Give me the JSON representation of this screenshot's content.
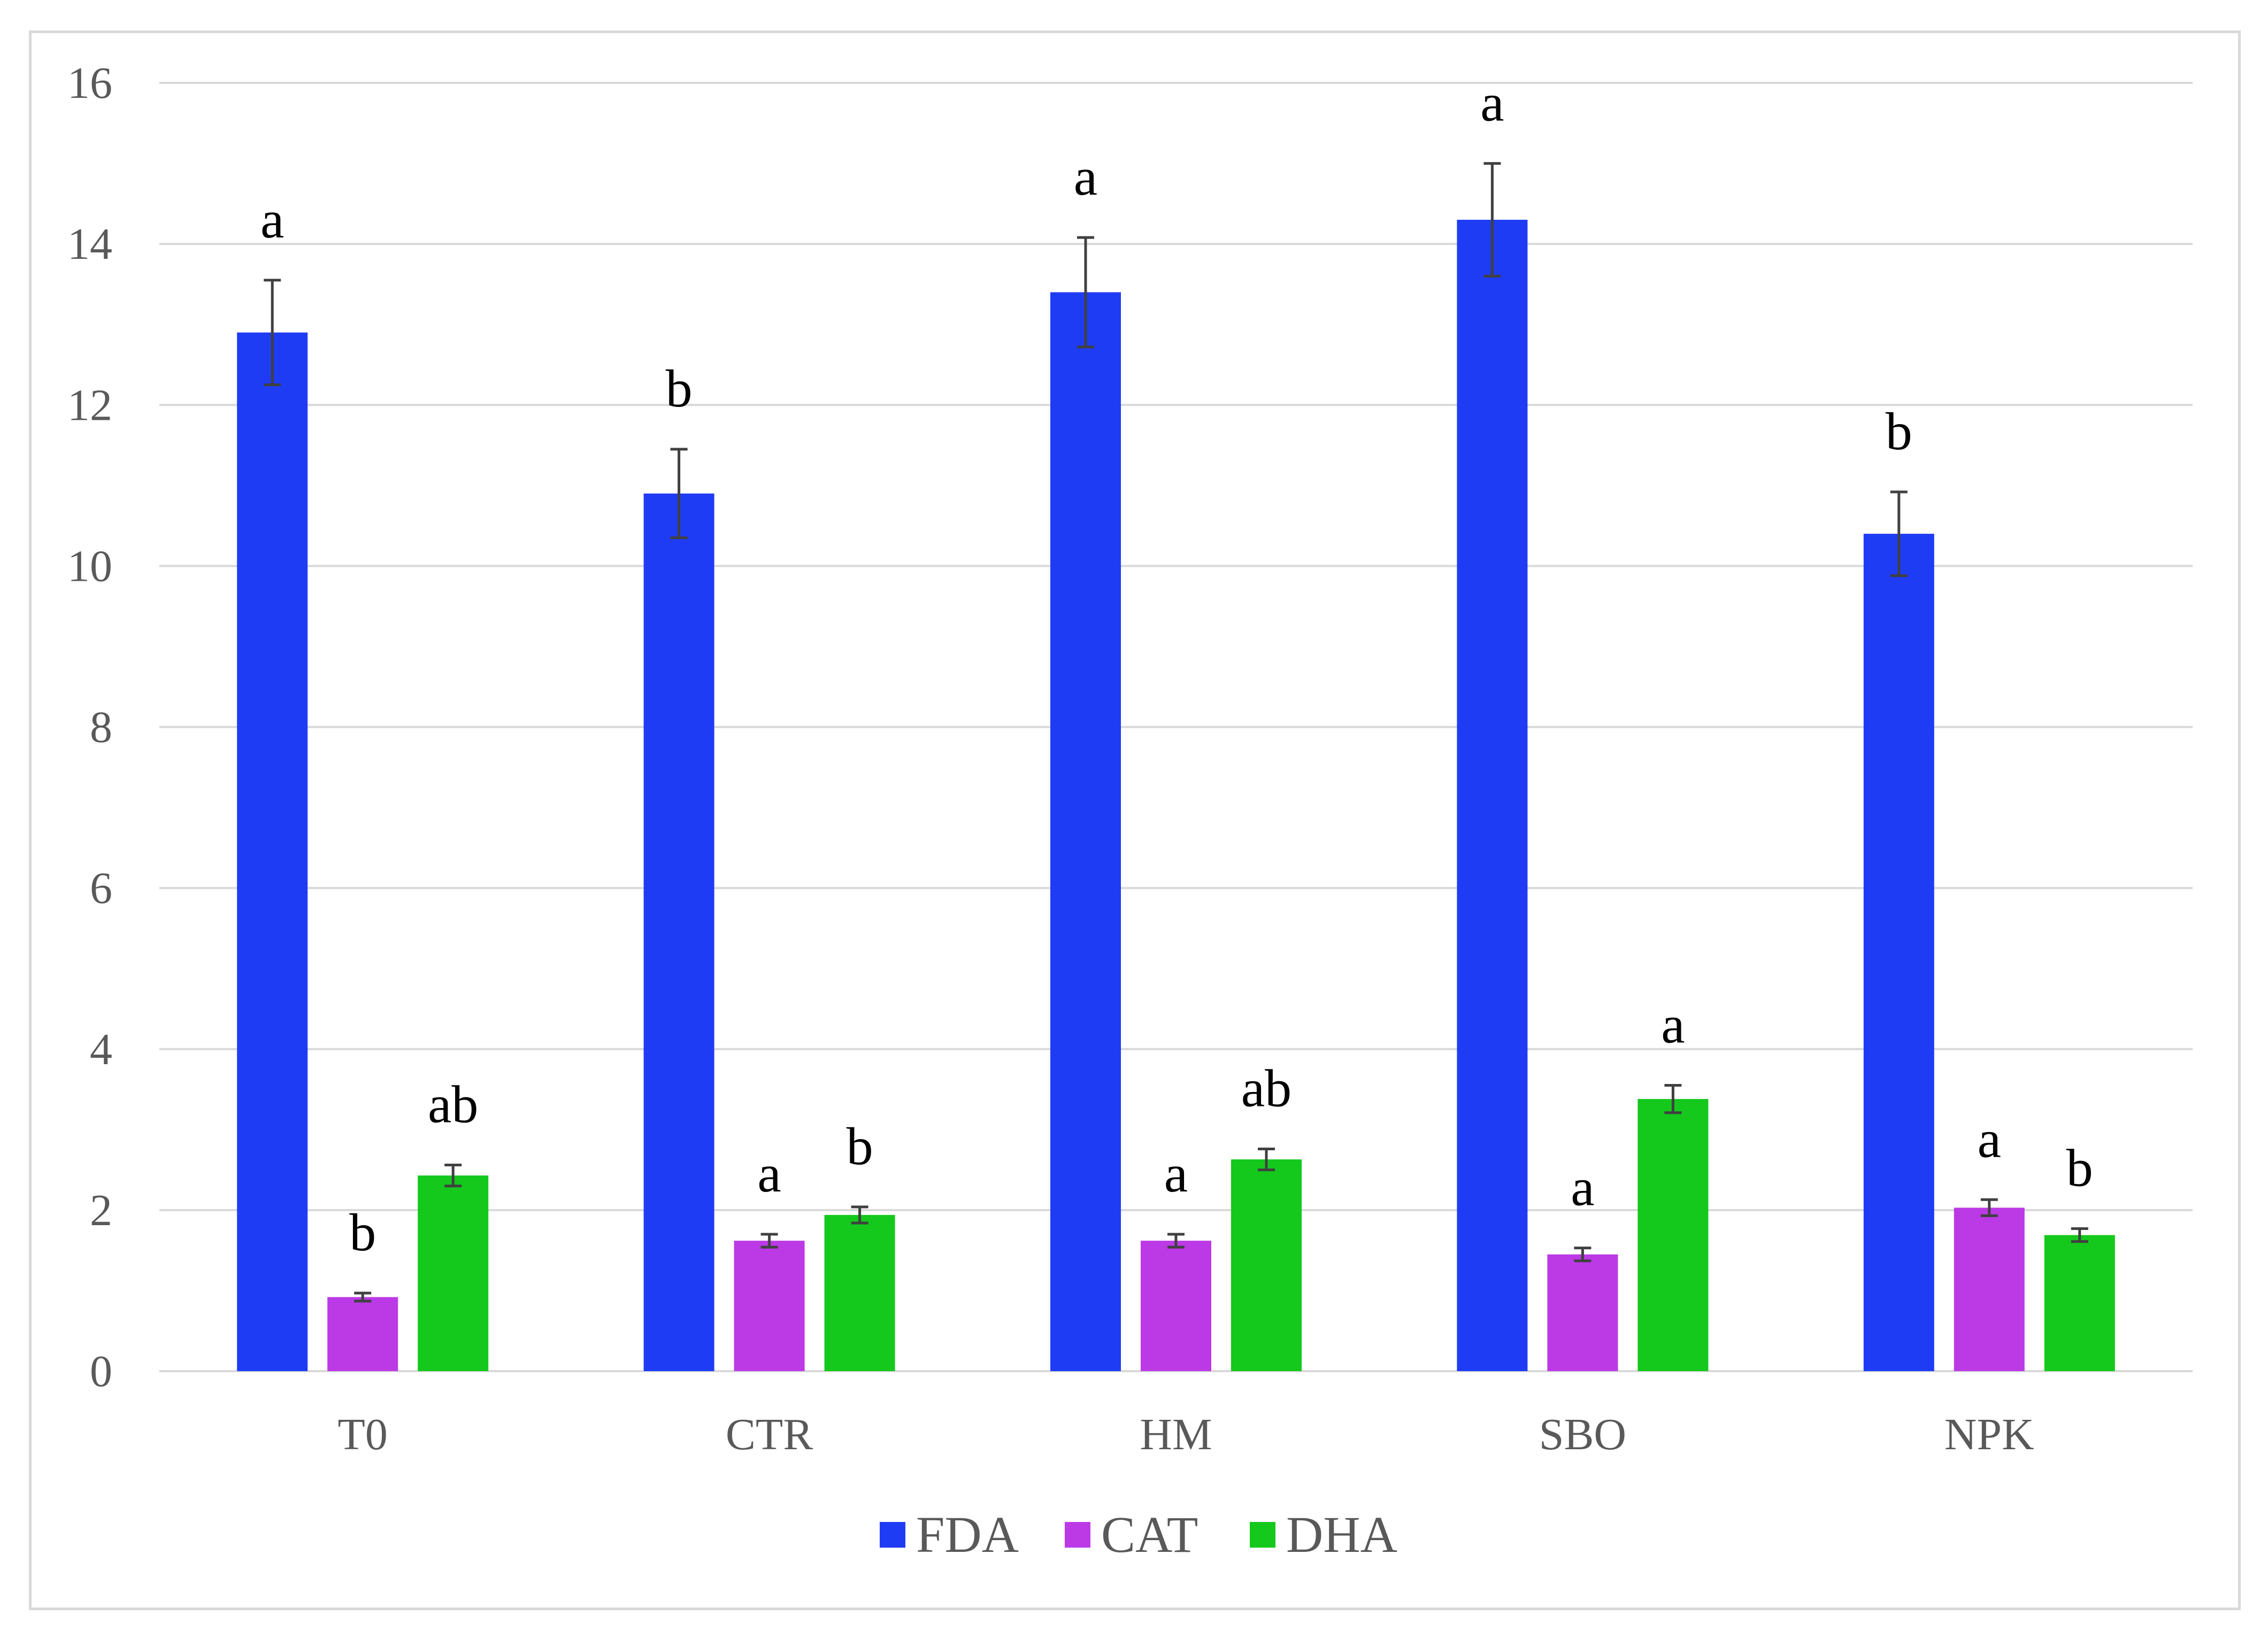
{
  "chart_data": {
    "type": "bar",
    "title": "",
    "xlabel": "",
    "ylabel": "",
    "ylim": [
      0,
      16
    ],
    "yticks": [
      0,
      2,
      4,
      6,
      8,
      10,
      12,
      14,
      16
    ],
    "grid": true,
    "legend_position": "bottom",
    "categories": [
      "T0",
      "CTR",
      "HM",
      "SBO",
      "NPK"
    ],
    "series": [
      {
        "name": "FDA",
        "color": "#1f3cf5",
        "values": [
          12.9,
          10.9,
          13.4,
          14.3,
          10.4
        ],
        "errors": [
          0.65,
          0.55,
          0.68,
          0.7,
          0.52
        ],
        "labels": [
          "a",
          "b",
          "a",
          "a",
          "b"
        ]
      },
      {
        "name": "CAT",
        "color": "#bb3ae6",
        "values": [
          0.92,
          1.62,
          1.62,
          1.45,
          2.03
        ],
        "errors": [
          0.05,
          0.08,
          0.08,
          0.08,
          0.1
        ],
        "labels": [
          "b",
          "a",
          "a",
          "a",
          "a"
        ]
      },
      {
        "name": "DHA",
        "color": "#14c81c",
        "values": [
          2.43,
          1.94,
          2.63,
          3.38,
          1.69
        ],
        "errors": [
          0.13,
          0.1,
          0.13,
          0.17,
          0.08
        ],
        "labels": [
          "ab",
          "b",
          "ab",
          "a",
          "b"
        ]
      }
    ]
  }
}
